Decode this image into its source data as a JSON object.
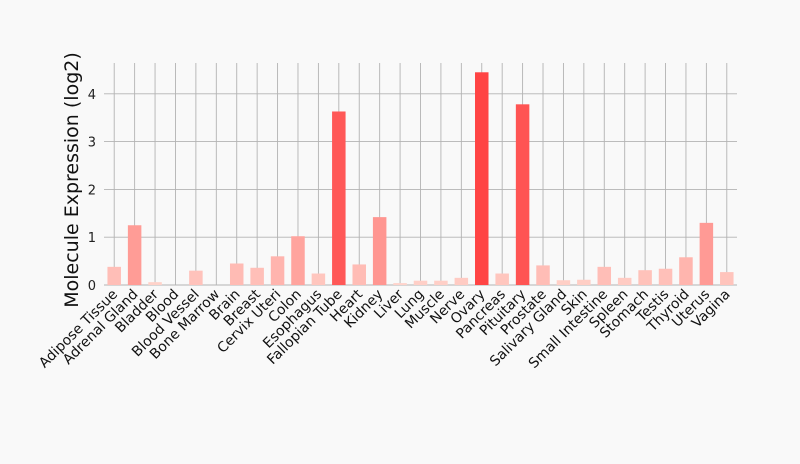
{
  "chart_data": {
    "type": "bar",
    "ylabel": "Molecule Expression (log2)",
    "xlabel": "",
    "ylim": [
      0,
      4.65
    ],
    "yticks": [
      0,
      1,
      2,
      3,
      4
    ],
    "grid": true,
    "colors": {
      "low": "#ffd9d0",
      "high": "#ff4444",
      "background": "#f9f9f9",
      "grid": "#b3b3b3"
    },
    "categories": [
      "Adipose Tissue",
      "Adrenal Gland",
      "Bladder",
      "Blood",
      "Blood Vessel",
      "Bone Marrow",
      "Brain",
      "Breast",
      "Cervix Uteri",
      "Colon",
      "Esophagus",
      "Fallopian Tube",
      "Heart",
      "Kidney",
      "Liver",
      "Lung",
      "Muscle",
      "Nerve",
      "Ovary",
      "Pancreas",
      "Pituitary",
      "Prostate",
      "Salivary Gland",
      "Skin",
      "Small Intestine",
      "Spleen",
      "Stomach",
      "Testis",
      "Thyroid",
      "Uterus",
      "Vagina"
    ],
    "values": [
      0.38,
      1.25,
      0.06,
      0.0,
      0.3,
      0.0,
      0.45,
      0.36,
      0.6,
      1.02,
      0.24,
      3.63,
      0.43,
      1.42,
      0.04,
      0.09,
      0.09,
      0.15,
      4.45,
      0.24,
      3.78,
      0.41,
      0.1,
      0.11,
      0.38,
      0.15,
      0.31,
      0.34,
      0.58,
      1.3,
      0.27
    ]
  }
}
